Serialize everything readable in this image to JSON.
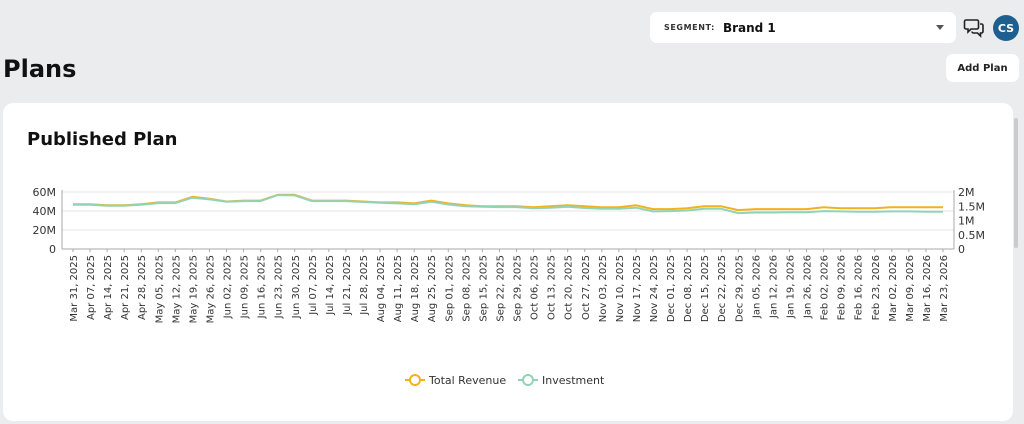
{
  "header": {
    "segment_label": "SEGMENT:",
    "segment_value": "Brand 1",
    "avatar_initials": "CS",
    "icons": {
      "dropdown": "chevron-down-icon",
      "chat": "chat-bubbles-icon"
    }
  },
  "page": {
    "title": "Plans",
    "add_button": "Add Plan"
  },
  "card": {
    "title": "Published Plan"
  },
  "colors": {
    "total_revenue": "#f2b21c",
    "investment": "#92d3b6",
    "avatar": "#1f5f8f"
  },
  "chart_data": {
    "type": "line",
    "title": "Published Plan",
    "x": [
      "Mar 31, 2025",
      "Apr 07, 2025",
      "Apr 14, 2025",
      "Apr 21, 2025",
      "Apr 28, 2025",
      "May 05, 2025",
      "May 12, 2025",
      "May 19, 2025",
      "May 26, 2025",
      "Jun 02, 2025",
      "Jun 09, 2025",
      "Jun 16, 2025",
      "Jun 23, 2025",
      "Jun 30, 2025",
      "Jul 07, 2025",
      "Jul 14, 2025",
      "Jul 21, 2025",
      "Jul 28, 2025",
      "Aug 04, 2025",
      "Aug 11, 2025",
      "Aug 18, 2025",
      "Aug 25, 2025",
      "Sep 01, 2025",
      "Sep 08, 2025",
      "Sep 15, 2025",
      "Sep 22, 2025",
      "Sep 29, 2025",
      "Oct 06, 2025",
      "Oct 13, 2025",
      "Oct 20, 2025",
      "Oct 27, 2025",
      "Nov 03, 2025",
      "Nov 10, 2025",
      "Nov 17, 2025",
      "Nov 24, 2025",
      "Dec 01, 2025",
      "Dec 08, 2025",
      "Dec 15, 2025",
      "Dec 22, 2025",
      "Dec 29, 2025",
      "Jan 05, 2026",
      "Jan 12, 2026",
      "Jan 19, 2026",
      "Jan 26, 2026",
      "Feb 02, 2026",
      "Feb 09, 2026",
      "Feb 16, 2026",
      "Feb 23, 2026",
      "Mar 02, 2026",
      "Mar 09, 2026",
      "Mar 16, 2026",
      "Mar 23, 2026"
    ],
    "x_tick_labels": [
      "Mar 31, 2025",
      "Apr 07, 2025",
      "Apr 14, 2025",
      "Apr 21, 2025",
      "Apr 28, 2025",
      "May 05, 2025",
      "May 12, 2025",
      "May 19, 2025",
      "May 26, 2025",
      "Jun 02, 2025",
      "Jun 09, 2025",
      "Jun 16, 2025",
      "Jun 23, 2025",
      "Jun 30, 2025",
      "Jul 07, 2025",
      "Jul 14, 2025",
      "Jul 21, 2025",
      "Jul 28, 2025",
      "Aug 04, 2025",
      "Aug 11, 2025",
      "Aug 18, 2025",
      "Aug 25, 2025",
      "Sep 01, 2025",
      "Sep 08, 2025",
      "Sep 15, 2025",
      "Sep 22, 2025",
      "Sep 29, 2025",
      "Oct 06, 2025",
      "Oct 13, 2025",
      "Oct 20, 2025",
      "Oct 27, 2025",
      "Nov 03, 2025",
      "Nov 10, 2025",
      "Nov 17, 2025",
      "Nov 24, 2025",
      "Dec 01, 2025",
      "Dec 08, 2025",
      "Dec 15, 2025",
      "Dec 22, 2025",
      "Dec 29, 2025",
      "Jan 05, 2026",
      "Jan 12, 2026",
      "Jan 19, 2026",
      "Jan 26, 2026",
      "Feb 02, 2026",
      "Feb 09, 2026",
      "Feb 16, 2026",
      "Feb 23, 2026",
      "Mar 02, 2026",
      "Mar 09, 2026",
      "Mar 16, 2026",
      "Mar 23, 2026"
    ],
    "series": [
      {
        "name": "Total Revenue",
        "axis": "left",
        "color": "#f2b21c",
        "values": [
          47,
          47,
          46,
          46,
          47,
          49,
          49,
          55,
          53,
          50,
          51,
          51,
          57,
          57,
          51,
          51,
          51,
          50,
          49,
          49,
          48,
          51,
          48,
          46,
          45,
          45,
          45,
          44,
          45,
          46,
          45,
          44,
          44,
          46,
          42,
          42,
          43,
          45,
          45,
          41,
          42,
          42,
          42,
          42,
          44,
          43,
          43,
          43,
          44,
          44,
          44,
          44
        ]
      },
      {
        "name": "Investment",
        "axis": "right",
        "color": "#92d3b6",
        "values": [
          1.55,
          1.55,
          1.52,
          1.52,
          1.55,
          1.61,
          1.61,
          1.8,
          1.74,
          1.66,
          1.68,
          1.68,
          1.89,
          1.88,
          1.68,
          1.68,
          1.68,
          1.65,
          1.62,
          1.6,
          1.57,
          1.66,
          1.56,
          1.5,
          1.48,
          1.47,
          1.47,
          1.43,
          1.45,
          1.48,
          1.44,
          1.41,
          1.41,
          1.45,
          1.32,
          1.33,
          1.35,
          1.41,
          1.41,
          1.26,
          1.28,
          1.28,
          1.29,
          1.29,
          1.33,
          1.32,
          1.31,
          1.31,
          1.32,
          1.32,
          1.31,
          1.31
        ]
      }
    ],
    "y_left": {
      "ticks": [
        0,
        20,
        40,
        60
      ],
      "tick_labels": [
        "0",
        "20M",
        "40M",
        "60M"
      ],
      "range": [
        0,
        60
      ]
    },
    "y_right": {
      "ticks": [
        0,
        0.5,
        1,
        1.5,
        2
      ],
      "tick_labels": [
        "0",
        "0.5M",
        "1M",
        "1.5M",
        "2M"
      ],
      "range": [
        0,
        2
      ]
    },
    "legend": [
      "Total Revenue",
      "Investment"
    ],
    "legend_position": "bottom-center",
    "grid": true
  }
}
